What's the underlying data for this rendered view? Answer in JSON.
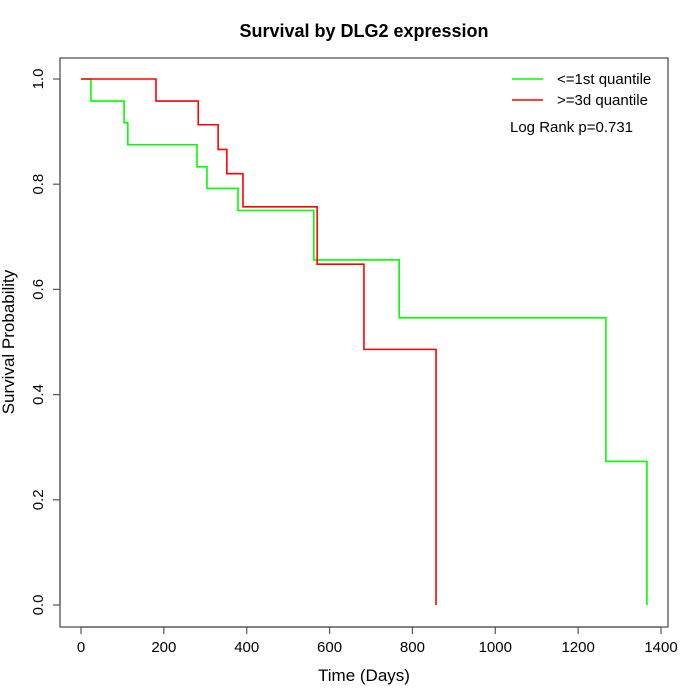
{
  "chart_data": {
    "type": "line",
    "subtype": "kaplan-meier step",
    "title": "Survival by DLG2 expression",
    "xlabel": "Time (Days)",
    "ylabel": "Survival Probability",
    "xlim": [
      -50,
      1420
    ],
    "ylim": [
      0,
      1.0
    ],
    "xticks": [
      0,
      200,
      400,
      600,
      800,
      1000,
      1200,
      1400
    ],
    "xtick_labels": [
      "0",
      "200",
      "400",
      "600",
      "800",
      "1000",
      "1200",
      "1400"
    ],
    "yticks": [
      0.0,
      0.2,
      0.4,
      0.6,
      0.8,
      1.0
    ],
    "ytick_labels": [
      "0.0",
      "0.2",
      "0.4",
      "0.6",
      "0.8",
      "1.0"
    ],
    "grid": false,
    "legend_position": "top-right",
    "annotation": "Log Rank p=0.731",
    "series": [
      {
        "name": "<=1st quantile",
        "color": "#00ff00",
        "times": [
          0,
          24,
          104,
          113,
          280,
          304,
          379,
          562,
          768,
          1267,
          1366
        ],
        "survival": [
          1.0,
          0.958,
          0.917,
          0.875,
          0.833,
          0.792,
          0.75,
          0.656,
          0.546,
          0.273,
          0.0
        ]
      },
      {
        "name": ">=3d quantile",
        "color": "#ff0000",
        "times": [
          0,
          181,
          283,
          331,
          352,
          391,
          570,
          683,
          857
        ],
        "survival": [
          1.0,
          0.958,
          0.913,
          0.866,
          0.82,
          0.757,
          0.648,
          0.486,
          0.0
        ]
      }
    ]
  }
}
